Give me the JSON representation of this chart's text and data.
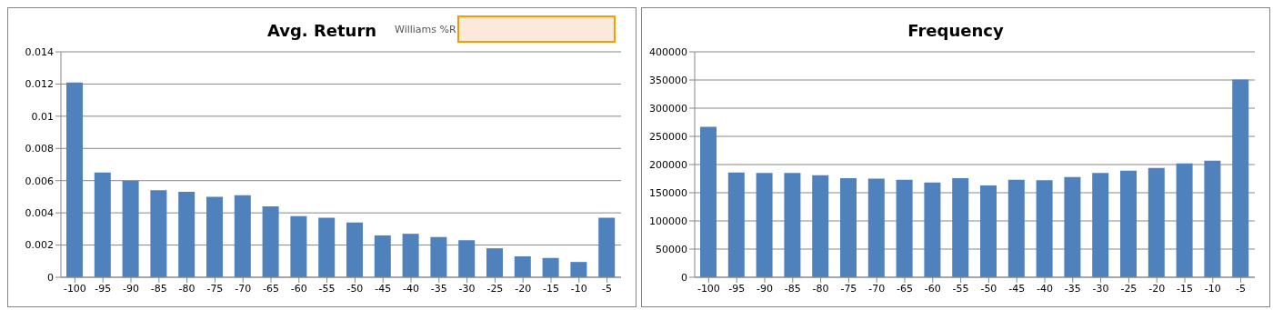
{
  "chart_data": [
    {
      "type": "bar",
      "title": "Avg. Return",
      "annotations": [
        "Williams %R"
      ],
      "categories": [
        "-100",
        "-95",
        "-90",
        "-85",
        "-80",
        "-75",
        "-70",
        "-65",
        "-60",
        "-55",
        "-50",
        "-45",
        "-40",
        "-35",
        "-30",
        "-25",
        "-20",
        "-15",
        "-10",
        "-5"
      ],
      "values": [
        0.0121,
        0.0065,
        0.006,
        0.0054,
        0.0053,
        0.005,
        0.0051,
        0.0044,
        0.0038,
        0.0037,
        0.0034,
        0.0026,
        0.0027,
        0.0025,
        0.0023,
        0.0018,
        0.0013,
        0.0012,
        0.00095,
        0.0037
      ],
      "color": "#4f81bd",
      "ylim": [
        0,
        0.014
      ],
      "yticks": [
        0,
        0.002,
        0.004,
        0.006,
        0.008,
        0.01,
        0.012,
        0.014
      ],
      "grid": "y",
      "legend": false
    },
    {
      "type": "bar",
      "title": "Frequency",
      "categories": [
        "-100",
        "-95",
        "-90",
        "-85",
        "-80",
        "-75",
        "-70",
        "-65",
        "-60",
        "-55",
        "-50",
        "-45",
        "-40",
        "-35",
        "-30",
        "-25",
        "-20",
        "-15",
        "-10",
        "-5"
      ],
      "values": [
        267000,
        186000,
        185000,
        185000,
        181000,
        176000,
        175000,
        173000,
        168000,
        176000,
        163000,
        173000,
        172000,
        178000,
        185000,
        189000,
        194000,
        202000,
        207000,
        351000
      ],
      "color": "#4f81bd",
      "ylim": [
        0,
        400000
      ],
      "yticks": [
        0,
        50000,
        100000,
        150000,
        200000,
        250000,
        300000,
        350000,
        400000
      ],
      "grid": "y",
      "legend": false
    }
  ]
}
